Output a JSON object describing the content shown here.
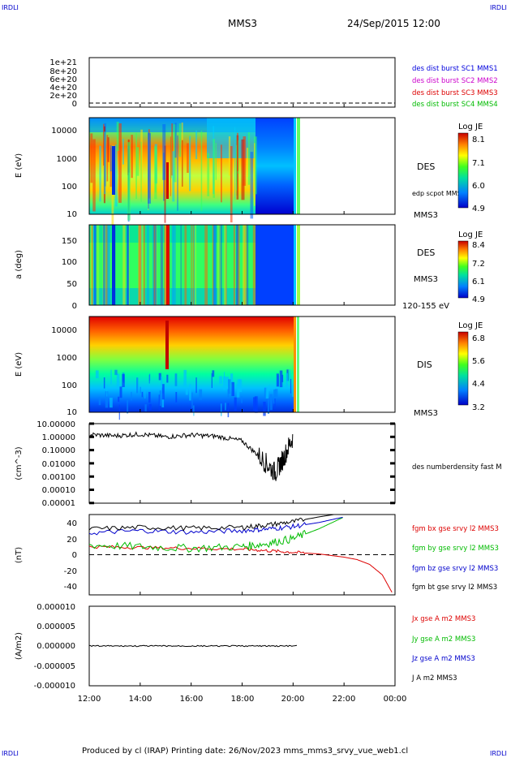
{
  "header": {
    "logo_left": "IRDLI",
    "logo_right": "IRDLI",
    "spacecraft": "MMS3",
    "datetime": "24/Sep/2015 12:00"
  },
  "footer": {
    "text": "Produced by cl (IRAP)   Printing date: 26/Nov/2023   mms_mms3_srvy_vue_web1.cl",
    "logo_left": "IRDLI",
    "logo_right": "IRDLI"
  },
  "time_axis": {
    "ticks": [
      "12:00",
      "14:00",
      "16:00",
      "18:00",
      "20:00",
      "22:00",
      "00:00"
    ],
    "hours": [
      12,
      14,
      16,
      18,
      20,
      22,
      24
    ]
  },
  "panels": {
    "burst": {
      "yticks": [
        "1e+21",
        "8e+20",
        "6e+20",
        "4e+20",
        "2e+20",
        "0"
      ],
      "values": [
        1e+21,
        8e+20,
        6e+20,
        4e+20,
        2e+20,
        0
      ],
      "legend": [
        {
          "text": "des dist burst SC1 MMS1",
          "color": "#0000dd"
        },
        {
          "text": "des dist burst SC2 MMS2",
          "color": "#cc00cc"
        },
        {
          "text": "des dist burst SC3 MMS3",
          "color": "#dd0000"
        },
        {
          "text": "des dist burst SC4 MMS4",
          "color": "#00bb00"
        }
      ]
    },
    "des_energy": {
      "ylabel": "E (eV)",
      "yticks": [
        "10000",
        "1000",
        "100",
        "10"
      ],
      "label": "DES",
      "sublabel": "edp scpot MMS3",
      "bottom_label": "MMS3",
      "colorbar_title": "Log JE",
      "colorbar_ticks": [
        "8.1",
        "7.1",
        "6.0",
        "4.9"
      ]
    },
    "des_pitch": {
      "ylabel": "a (deg)",
      "yticks": [
        "150",
        "100",
        "50",
        "0"
      ],
      "label": "DES",
      "sublabel": "MMS3",
      "bottom_label": "120-155 eV",
      "colorbar_title": "Log JE",
      "colorbar_ticks": [
        "8.4",
        "7.2",
        "6.1",
        "4.9"
      ]
    },
    "dis_energy": {
      "ylabel": "E (eV)",
      "yticks": [
        "10000",
        "1000",
        "100",
        "10"
      ],
      "label": "DIS",
      "bottom_label": "MMS3",
      "colorbar_title": "Log JE",
      "colorbar_ticks": [
        "6.8",
        "5.6",
        "4.4",
        "3.2"
      ]
    },
    "density": {
      "ylabel": "(cm^-3)",
      "yticks": [
        "10.00000",
        "1.00000",
        "0.10000",
        "0.01000",
        "0.00100",
        "0.00010",
        "0.00001"
      ],
      "legend": "des numberdensity fast M"
    },
    "bfield": {
      "ylabel": "(nT)",
      "yticks": [
        "40",
        "20",
        "0",
        "-20",
        "-40"
      ],
      "legend": [
        {
          "text": "fgm bx gse srvy l2 MMS3",
          "color": "#dd0000"
        },
        {
          "text": "fgm by gse srvy l2 MMS3",
          "color": "#00bb00"
        },
        {
          "text": "fgm bz gse srvy l2 MMS3",
          "color": "#0000cc"
        },
        {
          "text": "fgm bt gse srvy l2 MMS3",
          "color": "#000000"
        }
      ]
    },
    "current": {
      "ylabel": "(A/m2)",
      "yticks": [
        "0.000010",
        "0.000005",
        "0.000000",
        "-0.000005",
        "-0.000010"
      ],
      "legend": [
        {
          "text": "Jx gse A m2 MMS3",
          "color": "#dd0000"
        },
        {
          "text": "Jy gse A m2 MMS3",
          "color": "#00bb00"
        },
        {
          "text": "Jz gse A m2 MMS3",
          "color": "#0000cc"
        },
        {
          "text": "J A m2 MMS3",
          "color": "#000000"
        }
      ]
    }
  },
  "chart_data": {
    "type": "line",
    "x_unit": "hours",
    "xlim": [
      12,
      24
    ],
    "series": [
      {
        "name": "fgm bx gse srvy l2 MMS3",
        "x": [
          12,
          14,
          16,
          18,
          19,
          20,
          21,
          22,
          22.5,
          23,
          23.5,
          23.9
        ],
        "values": [
          10,
          9,
          8,
          7,
          5,
          3,
          1,
          -3,
          -6,
          -12,
          -25,
          -48
        ]
      },
      {
        "name": "fgm by gse srvy l2 MMS3",
        "x": [
          12,
          14,
          16,
          18,
          19,
          20,
          21,
          22
        ],
        "values": [
          12,
          10,
          8,
          10,
          14,
          20,
          32,
          47
        ]
      },
      {
        "name": "fgm bz gse srvy l2 MMS3",
        "x": [
          12,
          14,
          16,
          18,
          19,
          20,
          21,
          22
        ],
        "values": [
          27,
          30,
          28,
          30,
          32,
          35,
          40,
          47
        ]
      },
      {
        "name": "fgm bt gse srvy l2 MMS3",
        "x": [
          12,
          14,
          16,
          18,
          19,
          20,
          21,
          22
        ],
        "values": [
          32,
          34,
          33,
          34,
          37,
          41,
          47,
          52
        ]
      },
      {
        "name": "des numberdensity fast M",
        "x": [
          12,
          13,
          14,
          15,
          16,
          17,
          18,
          18.8,
          19.3,
          19.6,
          20
        ],
        "values": [
          1.5,
          1.2,
          1.6,
          1.0,
          1.4,
          1.1,
          0.5,
          0.02,
          0.002,
          0.02,
          1.0
        ]
      }
    ],
    "ylim_bfield": [
      -50,
      50
    ],
    "ylim_density": [
      1e-05,
      10
    ]
  }
}
